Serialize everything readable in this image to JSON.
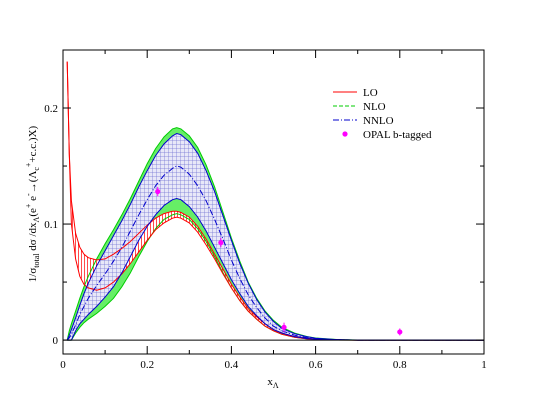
{
  "chart_data": {
    "type": "line",
    "xlabel": "x",
    "xlabel_sub": "Λ",
    "ylabel": "1/σ",
    "ylabel_sub1": "total",
    "ylabel_mid": " dσ /dx",
    "ylabel_sub2": "Λ",
    "ylabel_mid2": "(e",
    "ylabel_sup1": "+",
    "ylabel_mid3": " e",
    "ylabel_sup2": "-",
    "ylabel_arrow": "→",
    "ylabel_mid4": "(Λ",
    "ylabel_sub3": "c",
    "ylabel_sup3": "+",
    "ylabel_mid5": "+c.c.)X)",
    "xlim": [
      0,
      1
    ],
    "ylim": [
      -0.012,
      0.25
    ],
    "xticks": [
      "0",
      "0.2",
      "0.4",
      "0.6",
      "0.8",
      "1"
    ],
    "xtick_values": [
      0,
      0.2,
      0.4,
      0.6,
      0.8,
      1
    ],
    "yticks": [
      "0",
      "0.1",
      "0.2"
    ],
    "ytick_values": [
      0,
      0.1,
      0.2
    ],
    "grid": false,
    "legend_position": "top-right",
    "legend": [
      {
        "label": "LO",
        "style": "solid",
        "color": "#ff0000"
      },
      {
        "label": "NLO",
        "style": "dashed",
        "color": "#00cc00"
      },
      {
        "label": "NNLO",
        "style": "dash-dot",
        "color": "#0000cc"
      },
      {
        "label": "OPAL b-tagged",
        "style": "marker",
        "color": "#ff00ff"
      }
    ],
    "x": [
      0.01,
      0.015,
      0.02,
      0.03,
      0.04,
      0.05,
      0.06,
      0.08,
      0.1,
      0.12,
      0.14,
      0.16,
      0.18,
      0.2,
      0.22,
      0.24,
      0.26,
      0.27,
      0.28,
      0.3,
      0.32,
      0.34,
      0.36,
      0.38,
      0.4,
      0.42,
      0.44,
      0.46,
      0.48,
      0.5,
      0.52,
      0.55,
      0.58,
      0.6,
      0.65,
      0.7,
      0.75,
      0.8,
      0.9,
      1.0
    ],
    "series": [
      {
        "name": "LO",
        "color": "#ff0000",
        "upper": [
          0.24,
          0.16,
          0.12,
          0.092,
          0.08,
          0.074,
          0.071,
          0.069,
          0.07,
          0.074,
          0.079,
          0.085,
          0.092,
          0.099,
          0.105,
          0.109,
          0.111,
          0.111,
          0.11,
          0.106,
          0.098,
          0.087,
          0.074,
          0.061,
          0.048,
          0.037,
          0.027,
          0.02,
          0.014,
          0.009,
          0.006,
          0.003,
          0.0015,
          0.0008,
          0.0002,
          0,
          0,
          0,
          0,
          0
        ],
        "lower": [
          0.24,
          0.16,
          0.1,
          0.07,
          0.055,
          0.048,
          0.045,
          0.043,
          0.045,
          0.05,
          0.057,
          0.066,
          0.076,
          0.086,
          0.095,
          0.101,
          0.105,
          0.106,
          0.105,
          0.101,
          0.093,
          0.082,
          0.07,
          0.057,
          0.045,
          0.034,
          0.025,
          0.018,
          0.012,
          0.008,
          0.005,
          0.0025,
          0.001,
          0.0005,
          0.0001,
          0,
          0,
          0,
          0,
          0
        ]
      },
      {
        "name": "NLO",
        "color": "#00cc00",
        "upper": [
          0.0,
          0.008,
          0.014,
          0.025,
          0.036,
          0.046,
          0.055,
          0.07,
          0.083,
          0.095,
          0.108,
          0.122,
          0.137,
          0.152,
          0.165,
          0.175,
          0.182,
          0.183,
          0.182,
          0.176,
          0.166,
          0.151,
          0.132,
          0.11,
          0.088,
          0.068,
          0.05,
          0.036,
          0.025,
          0.017,
          0.011,
          0.006,
          0.003,
          0.0018,
          0.0005,
          0.0001,
          0,
          0,
          0,
          0
        ],
        "lower": [
          0.0,
          0.0,
          0.0,
          0.006,
          0.011,
          0.015,
          0.018,
          0.023,
          0.029,
          0.036,
          0.046,
          0.058,
          0.072,
          0.085,
          0.096,
          0.104,
          0.108,
          0.109,
          0.108,
          0.104,
          0.096,
          0.085,
          0.072,
          0.058,
          0.045,
          0.034,
          0.025,
          0.018,
          0.012,
          0.008,
          0.005,
          0.0025,
          0.001,
          0.0006,
          0.0001,
          0,
          0,
          0,
          0,
          0
        ]
      },
      {
        "name": "NNLO",
        "color": "#0000cc",
        "upper": [
          0.0,
          0.004,
          0.009,
          0.019,
          0.03,
          0.04,
          0.049,
          0.064,
          0.077,
          0.09,
          0.103,
          0.117,
          0.132,
          0.146,
          0.159,
          0.169,
          0.176,
          0.178,
          0.177,
          0.171,
          0.161,
          0.146,
          0.128,
          0.107,
          0.086,
          0.066,
          0.049,
          0.035,
          0.024,
          0.016,
          0.01,
          0.0055,
          0.0028,
          0.0016,
          0.0004,
          0,
          0,
          0,
          0,
          0
        ],
        "lower": [
          0.0,
          0.0,
          0.0,
          0.008,
          0.014,
          0.018,
          0.022,
          0.029,
          0.037,
          0.046,
          0.058,
          0.072,
          0.086,
          0.098,
          0.108,
          0.116,
          0.121,
          0.122,
          0.121,
          0.115,
          0.106,
          0.094,
          0.08,
          0.066,
          0.052,
          0.04,
          0.029,
          0.021,
          0.014,
          0.009,
          0.006,
          0.003,
          0.0013,
          0.0007,
          0.0002,
          0,
          0,
          0,
          0,
          0
        ],
        "central": [
          0.0,
          0.002,
          0.005,
          0.013,
          0.022,
          0.029,
          0.036,
          0.047,
          0.057,
          0.068,
          0.08,
          0.094,
          0.108,
          0.121,
          0.133,
          0.142,
          0.148,
          0.15,
          0.149,
          0.143,
          0.133,
          0.12,
          0.104,
          0.087,
          0.069,
          0.053,
          0.039,
          0.028,
          0.019,
          0.012,
          0.008,
          0.0042,
          0.002,
          0.0011,
          0.0003,
          0,
          0,
          0,
          0,
          0
        ]
      }
    ],
    "opal_points": [
      {
        "x": 0.225,
        "y": 0.128,
        "err": 0.004
      },
      {
        "x": 0.375,
        "y": 0.084,
        "err": 0.004
      },
      {
        "x": 0.525,
        "y": 0.011,
        "err": 0.004
      },
      {
        "x": 0.8,
        "y": 0.007,
        "err": 0.003
      }
    ]
  }
}
